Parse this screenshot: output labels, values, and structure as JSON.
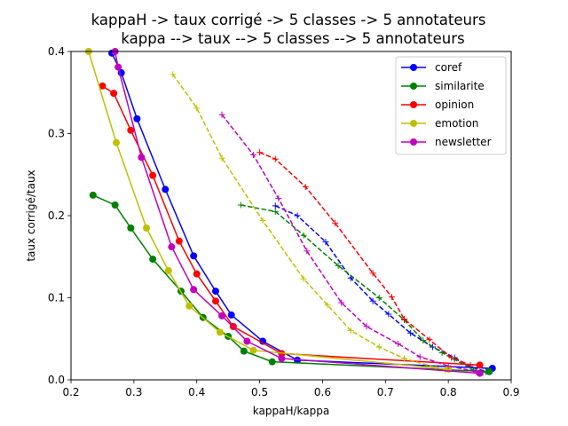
{
  "chart_data": {
    "type": "line",
    "title": [
      "kappaH -> taux corrigé -> 5 classes -> 5 annotateurs",
      "kappa --> taux --> 5 classes --> 5 annotateurs"
    ],
    "xlabel": "kappaH/kappa",
    "ylabel": "taux corrigé/taux",
    "xlim": [
      0.2,
      0.9
    ],
    "ylim": [
      0.0,
      0.4
    ],
    "xticks": [
      "0.2",
      "0.3",
      "0.4",
      "0.5",
      "0.6",
      "0.7",
      "0.8",
      "0.9"
    ],
    "yticks": [
      "0.0",
      "0.1",
      "0.2",
      "0.3",
      "0.4"
    ],
    "legend_position": "top-right",
    "grid": false,
    "series": [
      {
        "name": "coref",
        "color": "#0000ff",
        "legend": true,
        "solid": [
          [
            0.265,
            0.398
          ],
          [
            0.28,
            0.374
          ],
          [
            0.305,
            0.318
          ],
          [
            0.35,
            0.232
          ],
          [
            0.395,
            0.151
          ],
          [
            0.43,
            0.108
          ],
          [
            0.455,
            0.079
          ],
          [
            0.505,
            0.047
          ],
          [
            0.56,
            0.024
          ],
          [
            0.87,
            0.014
          ]
        ],
        "dashed": [
          [
            0.525,
            0.212
          ],
          [
            0.56,
            0.2
          ],
          [
            0.605,
            0.168
          ],
          [
            0.645,
            0.124
          ],
          [
            0.68,
            0.096
          ],
          [
            0.705,
            0.08
          ],
          [
            0.74,
            0.057
          ],
          [
            0.775,
            0.04
          ],
          [
            0.81,
            0.027
          ],
          [
            0.835,
            0.016
          ],
          [
            0.86,
            0.01
          ]
        ]
      },
      {
        "name": "similarite",
        "color": "#008000",
        "legend": true,
        "solid": [
          [
            0.235,
            0.225
          ],
          [
            0.27,
            0.213
          ],
          [
            0.295,
            0.185
          ],
          [
            0.33,
            0.147
          ],
          [
            0.375,
            0.108
          ],
          [
            0.41,
            0.076
          ],
          [
            0.45,
            0.053
          ],
          [
            0.475,
            0.035
          ],
          [
            0.52,
            0.022
          ],
          [
            0.865,
            0.01
          ]
        ],
        "dashed": [
          [
            0.47,
            0.213
          ],
          [
            0.525,
            0.205
          ],
          [
            0.57,
            0.176
          ],
          [
            0.625,
            0.139
          ],
          [
            0.69,
            0.1
          ],
          [
            0.73,
            0.073
          ],
          [
            0.76,
            0.048
          ],
          [
            0.79,
            0.033
          ],
          [
            0.81,
            0.025
          ],
          [
            0.84,
            0.012
          ],
          [
            0.855,
            0.009
          ]
        ]
      },
      {
        "name": "opinion",
        "color": "#ff0000",
        "legend": true,
        "solid": [
          [
            0.25,
            0.358
          ],
          [
            0.268,
            0.349
          ],
          [
            0.295,
            0.304
          ],
          [
            0.33,
            0.249
          ],
          [
            0.372,
            0.169
          ],
          [
            0.4,
            0.129
          ],
          [
            0.43,
            0.096
          ],
          [
            0.458,
            0.065
          ],
          [
            0.535,
            0.032
          ],
          [
            0.85,
            0.018
          ]
        ],
        "dashed": [
          [
            0.5,
            0.277
          ],
          [
            0.525,
            0.269
          ],
          [
            0.573,
            0.235
          ],
          [
            0.62,
            0.191
          ],
          [
            0.68,
            0.13
          ],
          [
            0.71,
            0.101
          ],
          [
            0.73,
            0.074
          ],
          [
            0.77,
            0.049
          ],
          [
            0.805,
            0.027
          ],
          [
            0.835,
            0.018
          ]
        ]
      },
      {
        "name": "emotion",
        "color": "#bfbf00",
        "legend": true,
        "solid": [
          [
            0.228,
            0.4
          ],
          [
            0.272,
            0.289
          ],
          [
            0.32,
            0.185
          ],
          [
            0.355,
            0.133
          ],
          [
            0.388,
            0.09
          ],
          [
            0.437,
            0.058
          ],
          [
            0.49,
            0.036
          ],
          [
            0.8,
            0.013
          ]
        ],
        "dashed": [
          [
            0.362,
            0.372
          ],
          [
            0.4,
            0.331
          ],
          [
            0.44,
            0.27
          ],
          [
            0.505,
            0.194
          ],
          [
            0.57,
            0.123
          ],
          [
            0.608,
            0.091
          ],
          [
            0.645,
            0.06
          ],
          [
            0.69,
            0.04
          ],
          [
            0.73,
            0.026
          ],
          [
            0.78,
            0.015
          ],
          [
            0.795,
            0.012
          ]
        ]
      },
      {
        "name": "newsletter",
        "color": "#bf00bf",
        "legend": true,
        "solid": [
          [
            0.27,
            0.4
          ],
          [
            0.275,
            0.381
          ],
          [
            0.312,
            0.271
          ],
          [
            0.36,
            0.162
          ],
          [
            0.395,
            0.11
          ],
          [
            0.44,
            0.078
          ],
          [
            0.48,
            0.047
          ],
          [
            0.535,
            0.026
          ],
          [
            0.85,
            0.008
          ]
        ],
        "dashed": [
          [
            0.44,
            0.323
          ],
          [
            0.49,
            0.274
          ],
          [
            0.53,
            0.221
          ],
          [
            0.575,
            0.157
          ],
          [
            0.63,
            0.094
          ],
          [
            0.67,
            0.065
          ],
          [
            0.72,
            0.044
          ],
          [
            0.755,
            0.028
          ],
          [
            0.8,
            0.017
          ],
          [
            0.845,
            0.01
          ]
        ]
      }
    ]
  }
}
